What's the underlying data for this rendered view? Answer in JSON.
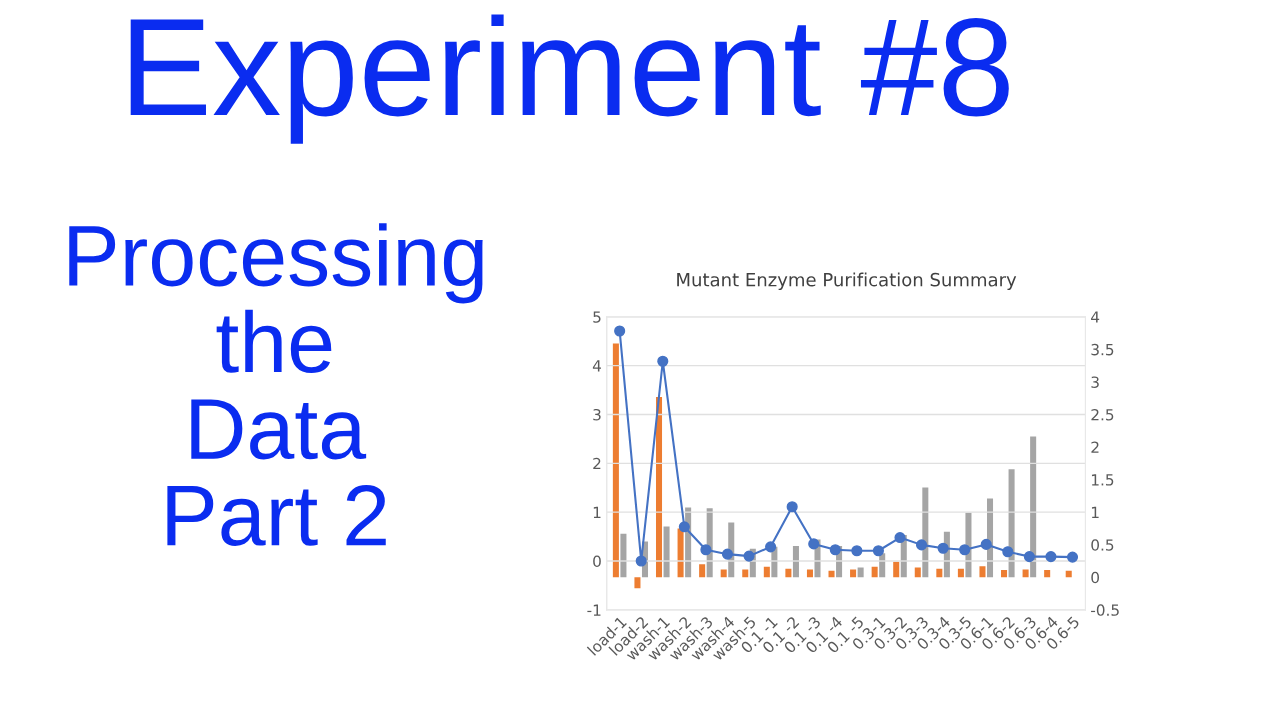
{
  "chart_data": {
    "type": "bar",
    "title": "Mutant Enzyme Purification Summary",
    "annotations": [
      "Experiment #8"
    ],
    "subtitle": "Processing\nthe\nData\nPart 2",
    "categories": [
      "load-1",
      "load-2",
      "wash-1",
      "wash-2",
      "wash-3",
      "wash-4",
      "wash-5",
      "0.1 -1",
      "0.1 -2",
      "0.1 -3",
      "0.1 -4",
      "0.1 -5",
      "0.3-1",
      "0.3-2",
      "0.3-3",
      "0.3-4",
      "0.3-5",
      "0.6-1",
      "0.6-2",
      "0.6-3",
      "0.6-4",
      "0.6-5"
    ],
    "series": [
      {
        "axis": "y2",
        "color": "#ed7d31",
        "values": [
          3.59,
          -0.17,
          2.77,
          0.75,
          0.2,
          0.12,
          0.12,
          0.16,
          0.13,
          0.12,
          0.1,
          0.12,
          0.16,
          0.24,
          0.15,
          0.13,
          0.13,
          0.17,
          0.11,
          0.12,
          0.11,
          0.1
        ]
      },
      {
        "axis": "y2",
        "color": "#a5a5a5",
        "values": [
          0.67,
          0.55,
          0.78,
          1.07,
          1.06,
          0.84,
          0.44,
          0.47,
          0.48,
          0.58,
          0.48,
          0.15,
          0.37,
          0.65,
          1.38,
          0.7,
          0.99,
          1.21,
          1.66,
          2.16,
          null,
          null
        ]
      },
      {
        "type": "line",
        "axis": "y",
        "color": "#4472c4",
        "marker": "circle",
        "line_style": "solid",
        "values": [
          4.71,
          0,
          4.09,
          0.7,
          0.23,
          0.14,
          0.1,
          0.29,
          1.11,
          0.35,
          0.23,
          0.21,
          0.21,
          0.48,
          0.33,
          0.26,
          0.23,
          0.34,
          0.19,
          0.09,
          0.09,
          0.08
        ]
      }
    ],
    "ylim": [
      -1,
      5
    ],
    "yticks": [
      {
        "value": -1,
        "label": "-1"
      },
      0,
      1,
      2,
      3,
      4,
      5
    ],
    "y2lim": [
      -0.5,
      4
    ],
    "y2ticks": [
      {
        "value": -0.5,
        "label": "-0.5"
      },
      0,
      0.5,
      1,
      1.5,
      2,
      2.5,
      3,
      3.5,
      4
    ],
    "grid": "y",
    "legend": false
  }
}
